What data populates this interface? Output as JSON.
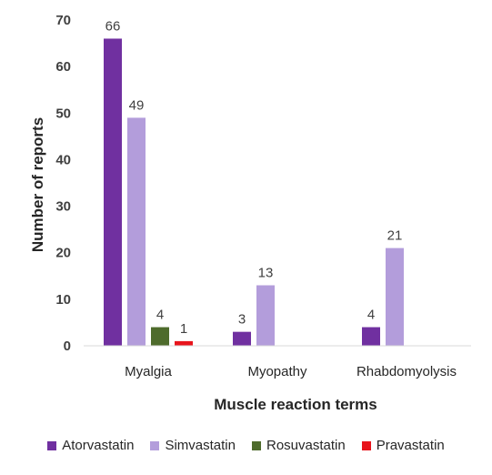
{
  "chart_data": {
    "type": "bar",
    "title": "",
    "xlabel": "Muscle reaction terms",
    "ylabel": "Number of reports",
    "ylim": [
      0,
      70
    ],
    "yticks": [
      0,
      10,
      20,
      30,
      40,
      50,
      60,
      70
    ],
    "grid": false,
    "legend_position": "bottom",
    "categories": [
      "Myalgia",
      "Myopathy",
      "Rhabdomyolysis"
    ],
    "series": [
      {
        "name": "Atorvastatin",
        "color": "#7030a0",
        "values": [
          66,
          3,
          4
        ]
      },
      {
        "name": "Simvastatin",
        "color": "#b39ddb",
        "values": [
          49,
          13,
          21
        ]
      },
      {
        "name": "Rosuvastatin",
        "color": "#4e6b2c",
        "values": [
          4,
          null,
          null
        ]
      },
      {
        "name": "Pravastatin",
        "color": "#e8141c",
        "values": [
          1,
          null,
          null
        ]
      }
    ]
  }
}
